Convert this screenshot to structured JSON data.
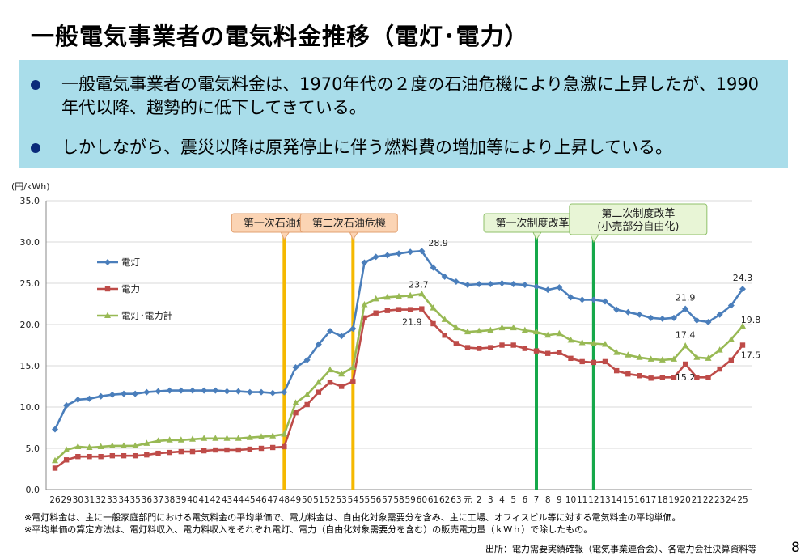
{
  "slide": {
    "title": "一般電気事業者の電気料金推移（電灯･電力）",
    "bullets": [
      "一般電気事業者の電気料金は、1970年代の２度の石油危機により急激に上昇したが、1990年代以降、趨勢的に低下してきている。",
      "しかしながら、震災以降は原発停止に伴う燃料費の増加等により上昇している。"
    ],
    "notes": [
      "※電灯料金は、主に一般家庭部門における電気料金の平均単価で、電力料金は、自由化対象需要分を含み、主に工場、オフィスビル等に対する電気料金の平均単価。",
      "※平均単価の算定方法は、電灯料収入、電力料収入をそれぞれ電灯、電力（自由化対象需要分を含む）の販売電力量（ｋＷｈ）で除したもの。"
    ],
    "source": "出所：電力需要実績確報（電気事業連合会）、各電力会社決算資料等",
    "page_number": "8"
  },
  "chart_data": {
    "type": "line",
    "ylabel": "(円/kWh)",
    "ylim": [
      0,
      35
    ],
    "yticks": [
      "0.0",
      "5.0",
      "10.0",
      "15.0",
      "20.0",
      "25.0",
      "30.0",
      "35.0"
    ],
    "grid": true,
    "legend_position": "left",
    "categories": [
      "26",
      "29",
      "30",
      "31",
      "32",
      "33",
      "34",
      "35",
      "36",
      "37",
      "38",
      "39",
      "40",
      "41",
      "42",
      "43",
      "44",
      "45",
      "46",
      "47",
      "48",
      "49",
      "50",
      "51",
      "52",
      "53",
      "54",
      "55",
      "56",
      "57",
      "58",
      "59",
      "60",
      "61",
      "62",
      "63",
      "元",
      "2",
      "3",
      "4",
      "5",
      "6",
      "7",
      "8",
      "9",
      "10",
      "11",
      "12",
      "13",
      "14",
      "15",
      "16",
      "17",
      "18",
      "19",
      "20",
      "21",
      "22",
      "23",
      "24",
      "25"
    ],
    "series": [
      {
        "name": "電灯",
        "color": "#4a7ebb",
        "marker": "diamond",
        "values": [
          7.3,
          10.2,
          10.9,
          11.0,
          11.3,
          11.5,
          11.6,
          11.6,
          11.8,
          11.9,
          12.0,
          12.0,
          12.0,
          12.0,
          12.0,
          11.9,
          11.9,
          11.8,
          11.8,
          11.7,
          11.8,
          14.8,
          15.7,
          17.6,
          19.2,
          18.6,
          19.5,
          27.5,
          28.2,
          28.4,
          28.6,
          28.8,
          28.9,
          26.9,
          25.8,
          25.2,
          24.8,
          24.9,
          24.9,
          25.0,
          24.9,
          24.8,
          24.6,
          24.2,
          24.5,
          23.3,
          23.0,
          23.0,
          22.8,
          21.8,
          21.5,
          21.2,
          20.8,
          20.7,
          20.8,
          21.9,
          20.5,
          20.3,
          21.2,
          22.3,
          24.3
        ]
      },
      {
        "name": "電力",
        "color": "#be4b48",
        "marker": "square",
        "values": [
          2.6,
          3.6,
          4.0,
          4.0,
          4.0,
          4.1,
          4.1,
          4.1,
          4.2,
          4.4,
          4.5,
          4.6,
          4.6,
          4.7,
          4.8,
          4.8,
          4.8,
          4.9,
          5.0,
          5.1,
          5.2,
          9.3,
          10.3,
          11.8,
          13.0,
          12.5,
          13.1,
          20.8,
          21.4,
          21.7,
          21.8,
          21.8,
          21.9,
          20.1,
          18.7,
          17.7,
          17.2,
          17.1,
          17.2,
          17.5,
          17.5,
          17.1,
          16.8,
          16.5,
          16.6,
          15.9,
          15.5,
          15.4,
          15.5,
          14.4,
          14.0,
          13.8,
          13.5,
          13.6,
          13.6,
          15.2,
          13.6,
          13.6,
          14.6,
          15.7,
          17.5
        ]
      },
      {
        "name": "電灯･電力計",
        "color": "#98b954",
        "marker": "triangle",
        "values": [
          3.5,
          4.8,
          5.2,
          5.1,
          5.2,
          5.3,
          5.3,
          5.3,
          5.6,
          5.9,
          6.0,
          6.0,
          6.1,
          6.2,
          6.2,
          6.2,
          6.2,
          6.3,
          6.4,
          6.5,
          6.7,
          10.5,
          11.5,
          13.0,
          14.5,
          14.0,
          14.8,
          22.4,
          23.1,
          23.3,
          23.4,
          23.5,
          23.7,
          22.0,
          20.6,
          19.6,
          19.1,
          19.2,
          19.3,
          19.6,
          19.6,
          19.3,
          19.1,
          18.7,
          18.9,
          18.1,
          17.8,
          17.7,
          17.6,
          16.6,
          16.3,
          16.0,
          15.8,
          15.7,
          15.8,
          17.4,
          16.0,
          15.9,
          16.9,
          18.2,
          19.8
        ]
      }
    ],
    "value_labels": [
      {
        "series": 0,
        "index": 32,
        "text": "28.9"
      },
      {
        "series": 2,
        "index": 32,
        "text": "23.7"
      },
      {
        "series": 1,
        "index": 32,
        "text": "21.9"
      },
      {
        "series": 0,
        "index": 55,
        "text": "21.9"
      },
      {
        "series": 2,
        "index": 55,
        "text": "17.4"
      },
      {
        "series": 1,
        "index": 55,
        "text": "15.2"
      },
      {
        "series": 0,
        "index": 60,
        "text": "24.3"
      },
      {
        "series": 2,
        "index": 60,
        "text": "19.8"
      },
      {
        "series": 1,
        "index": 60,
        "text": "17.5"
      }
    ],
    "events": [
      {
        "label": "第一次石油危機",
        "index": 20,
        "color": "#f5b800",
        "label_bg": "#fbd4b4",
        "label_border": "#e2a070"
      },
      {
        "label": "第二次石油危機",
        "index": 26,
        "color": "#f5b800",
        "label_bg": "#fbd4b4",
        "label_border": "#e2a070"
      },
      {
        "label": "第一次制度改革",
        "index": 42,
        "color": "#15a84a",
        "label_bg": "#e8f5d6",
        "label_border": "#8fc06a"
      },
      {
        "label": "第二次制度改革\n(小売部分自由化)",
        "index": 47,
        "color": "#15a84a",
        "label_bg": "#e8f5d6",
        "label_border": "#8fc06a"
      }
    ]
  }
}
